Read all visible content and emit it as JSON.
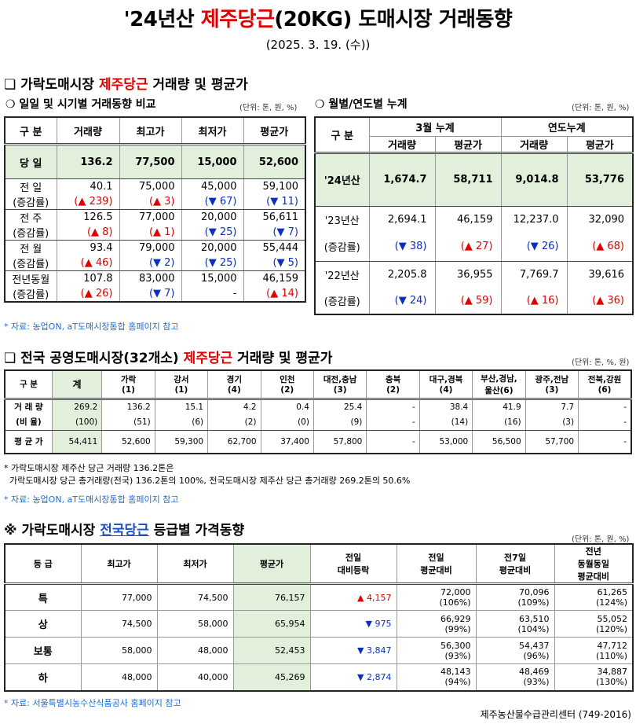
{
  "title": {
    "prefix": "'24년산 ",
    "highlight": "제주당근",
    "suffix": "(20KG) 도매시장 거래동향"
  },
  "date": "(2025. 3. 19. (수))",
  "section1": {
    "marker": "❏",
    "title_prefix": "가락도매시장 ",
    "title_highlight": "제주당근",
    "title_suffix": " 거래량 및 평균가",
    "sub_left": "❍ 일일 및 시기별 거래동향 비교",
    "unit_left": "(단위: 톤, 원, %)",
    "sub_right": "❍ 월별/연도별 누계",
    "unit_right": "(단위: 톤, 원, %)"
  },
  "daily_table": {
    "headers": [
      "구  분",
      "거래량",
      "최고가",
      "최저가",
      "평균가"
    ],
    "today": {
      "label": "당  일",
      "values": [
        "136.2",
        "77,500",
        "15,000",
        "52,600"
      ]
    },
    "rows": [
      {
        "label": "전  일",
        "values": [
          "40.1",
          "75,000",
          "45,000",
          "59,100"
        ],
        "change_label": "(증감률)",
        "changes": [
          {
            "dir": "up",
            "text": "(▲ 239)"
          },
          {
            "dir": "up",
            "text": "(▲ 3)"
          },
          {
            "dir": "down",
            "text": "(▼ 67)"
          },
          {
            "dir": "down",
            "text": "(▼ 11)"
          }
        ]
      },
      {
        "label": "전  주",
        "values": [
          "126.5",
          "77,000",
          "20,000",
          "56,611"
        ],
        "change_label": "(증감률)",
        "changes": [
          {
            "dir": "up",
            "text": "(▲ 8)"
          },
          {
            "dir": "up",
            "text": "(▲ 1)"
          },
          {
            "dir": "down",
            "text": "(▼ 25)"
          },
          {
            "dir": "down",
            "text": "(▼ 7)"
          }
        ]
      },
      {
        "label": "전  월",
        "values": [
          "93.4",
          "79,000",
          "20,000",
          "55,444"
        ],
        "change_label": "(증감률)",
        "changes": [
          {
            "dir": "up",
            "text": "(▲ 46)"
          },
          {
            "dir": "down",
            "text": "(▼ 2)"
          },
          {
            "dir": "down",
            "text": "(▼ 25)"
          },
          {
            "dir": "down",
            "text": "(▼ 5)"
          }
        ]
      },
      {
        "label": "전년동월",
        "values": [
          "107.8",
          "83,000",
          "15,000",
          "46,159"
        ],
        "change_label": "(증감률)",
        "changes": [
          {
            "dir": "up",
            "text": "(▲ 26)"
          },
          {
            "dir": "down",
            "text": "(▼ 7)"
          },
          {
            "dir": "none",
            "text": "-"
          },
          {
            "dir": "up",
            "text": "(▲ 14)"
          }
        ]
      }
    ]
  },
  "cumulative_table": {
    "header_label": "구  분",
    "group1": "3월 누계",
    "group2": "연도누계",
    "subheaders": [
      "거래량",
      "평균가",
      "거래량",
      "평균가"
    ],
    "current": {
      "label": "'24년산",
      "values": [
        "1,674.7",
        "58,711",
        "9,014.8",
        "53,776"
      ]
    },
    "rows": [
      {
        "label": "'23년산",
        "values": [
          "2,694.1",
          "46,159",
          "12,237.0",
          "32,090"
        ],
        "change_label": "(증감률)",
        "changes": [
          {
            "dir": "down",
            "text": "(▼ 38)"
          },
          {
            "dir": "up",
            "text": "(▲ 27)"
          },
          {
            "dir": "down",
            "text": "(▼ 26)"
          },
          {
            "dir": "up",
            "text": "(▲ 68)"
          }
        ]
      },
      {
        "label": "'22년산",
        "values": [
          "2,205.8",
          "36,955",
          "7,769.7",
          "39,616"
        ],
        "change_label": "(증감률)",
        "changes": [
          {
            "dir": "down",
            "text": "(▼ 24)"
          },
          {
            "dir": "up",
            "text": "(▲ 59)"
          },
          {
            "dir": "up",
            "text": "(▲ 16)"
          },
          {
            "dir": "up",
            "text": "(▲ 36)"
          }
        ]
      }
    ]
  },
  "note1": "* 자료: 농업ON, aT도매시장통합 홈페이지 참고",
  "section2": {
    "marker": "❏",
    "title_prefix": "전국 공영도매시장(32개소) ",
    "title_highlight": "제주당근",
    "title_suffix": " 거래량 및 평균가",
    "unit": "(단위: 톤, %, 원)"
  },
  "national_table": {
    "header_label": "구  분",
    "columns": [
      {
        "name": "계",
        "count": ""
      },
      {
        "name": "가락",
        "count": "(1)"
      },
      {
        "name": "강서",
        "count": "(1)"
      },
      {
        "name": "경기",
        "count": "(4)"
      },
      {
        "name": "인천",
        "count": "(2)"
      },
      {
        "name": "대전,충남",
        "count": "(3)"
      },
      {
        "name": "충북",
        "count": "(2)"
      },
      {
        "name": "대구,경북",
        "count": "(4)"
      },
      {
        "name": "부산,경남,",
        "count": "울산(6)"
      },
      {
        "name": "광주,전남",
        "count": "(3)"
      },
      {
        "name": "전북,강원",
        "count": "(6)"
      }
    ],
    "rows": [
      {
        "label": "거 래 량",
        "values": [
          "269.2",
          "136.2",
          "15.1",
          "4.2",
          "0.4",
          "25.4",
          "-",
          "38.4",
          "41.9",
          "7.7",
          "-"
        ]
      },
      {
        "label": "(비 율)",
        "values": [
          "(100)",
          "(51)",
          "(6)",
          "(2)",
          "(0)",
          "(9)",
          "-",
          "(14)",
          "(16)",
          "(3)",
          "-"
        ]
      },
      {
        "label": "평 균 가",
        "values": [
          "54,411",
          "52,600",
          "59,300",
          "62,700",
          "37,400",
          "57,800",
          "-",
          "53,000",
          "56,500",
          "57,700",
          "-"
        ]
      }
    ]
  },
  "footnote2_line1": "* 가락도매시장 제주산 당근 거래량 136.2톤은",
  "footnote2_line2": "가락도매시장 당근 총거래량(전국) 136.2톤의 100%, 전국도매시장 제주산 당근 총거래량 269.2톤의 50.6%",
  "note2": "* 자료: 농업ON, aT도매시장통합 홈페이지 참고",
  "section3": {
    "marker": "※",
    "title_prefix": "가락도매시장 ",
    "title_highlight": "전국당근",
    "title_suffix": " 등급별 가격동향",
    "unit": "(단위: 톤, 원, %)"
  },
  "grade_table": {
    "headers": [
      "등  급",
      "최고가",
      "최저가",
      "평균가",
      "전일 대비등락",
      "전일 평균대비",
      "전7일 평균대비",
      "전년 동월동일 평균대비"
    ],
    "header_lines": [
      [
        "등  급"
      ],
      [
        "최고가"
      ],
      [
        "최저가"
      ],
      [
        "평균가"
      ],
      [
        "전일",
        "대비등락"
      ],
      [
        "전일",
        "평균대비"
      ],
      [
        "전7일",
        "평균대비"
      ],
      [
        "전년",
        "동월동일",
        "평균대비"
      ]
    ],
    "rows": [
      {
        "grade": "특",
        "max": "77,000",
        "min": "74,500",
        "avg": "76,157",
        "change": {
          "dir": "up",
          "text": "▲ 4,157"
        },
        "prev_day": [
          "72,000",
          "(106%)"
        ],
        "prev_7": [
          "70,096",
          "(109%)"
        ],
        "prev_year": [
          "61,265",
          "(124%)"
        ]
      },
      {
        "grade": "상",
        "max": "74,500",
        "min": "58,000",
        "avg": "65,954",
        "change": {
          "dir": "down",
          "text": "▼ 975"
        },
        "prev_day": [
          "66,929",
          "(99%)"
        ],
        "prev_7": [
          "63,510",
          "(104%)"
        ],
        "prev_year": [
          "55,052",
          "(120%)"
        ]
      },
      {
        "grade": "보통",
        "max": "58,000",
        "min": "48,000",
        "avg": "52,453",
        "change": {
          "dir": "down",
          "text": "▼ 3,847"
        },
        "prev_day": [
          "56,300",
          "(93%)"
        ],
        "prev_7": [
          "54,437",
          "(96%)"
        ],
        "prev_year": [
          "47,712",
          "(110%)"
        ]
      },
      {
        "grade": "하",
        "max": "48,000",
        "min": "40,000",
        "avg": "45,269",
        "change": {
          "dir": "down",
          "text": "▼ 2,874"
        },
        "prev_day": [
          "48,143",
          "(94%)"
        ],
        "prev_7": [
          "48,469",
          "(93%)"
        ],
        "prev_year": [
          "34,887",
          "(130%)"
        ]
      }
    ]
  },
  "note3": "* 자료: 서울특별시농수산식품공사 홈페이지 참고",
  "footer": "제주농산물수급관리센터 (749-2016)"
}
